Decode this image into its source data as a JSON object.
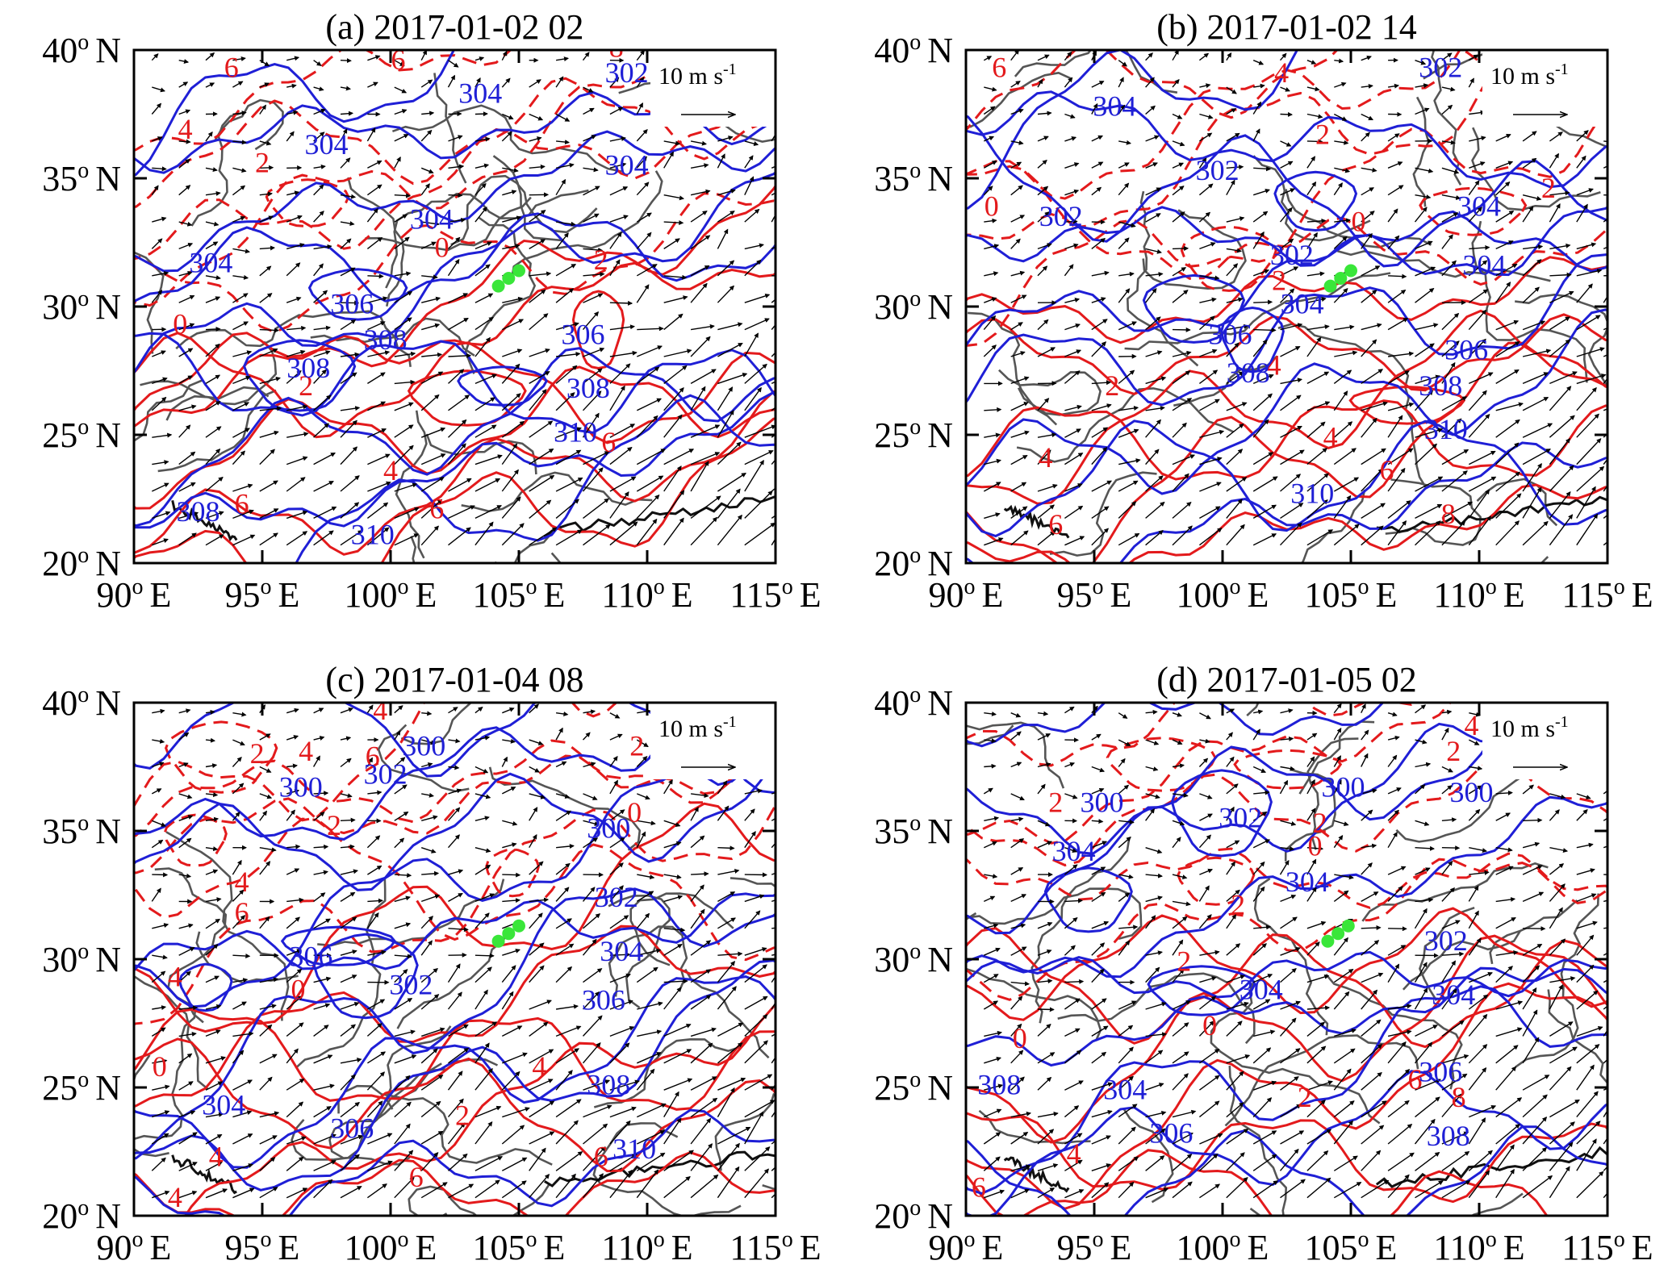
{
  "figure": {
    "panels": [
      {
        "id": "a",
        "title": "(a) 2017-01-02 02",
        "legend": {
          "speed_value": "10",
          "unit": "m s",
          "exponent": "-1"
        },
        "contours_blue": [
          {
            "label": "304",
            "lon": 97.5,
            "lat": 36.2
          },
          {
            "label": "304",
            "lon": 93.0,
            "lat": 31.6
          },
          {
            "label": "304",
            "lon": 103.5,
            "lat": 38.2
          },
          {
            "label": "304",
            "lon": 101.6,
            "lat": 33.3
          },
          {
            "label": "304",
            "lon": 109.2,
            "lat": 35.4
          },
          {
            "label": "302",
            "lon": 109.2,
            "lat": 39.0
          },
          {
            "label": "306",
            "lon": 98.5,
            "lat": 30.0
          },
          {
            "label": "306",
            "lon": 107.5,
            "lat": 28.8
          },
          {
            "label": "308",
            "lon": 96.8,
            "lat": 27.5
          },
          {
            "label": "308",
            "lon": 99.8,
            "lat": 28.6
          },
          {
            "label": "308",
            "lon": 107.7,
            "lat": 26.7
          },
          {
            "label": "308",
            "lon": 92.5,
            "lat": 21.9
          },
          {
            "label": "310",
            "lon": 107.2,
            "lat": 25.0
          },
          {
            "label": "310",
            "lon": 99.3,
            "lat": 21.0
          }
        ],
        "contours_red": [
          {
            "label": "6",
            "lon": 93.8,
            "lat": 39.2
          },
          {
            "label": "6",
            "lon": 100.3,
            "lat": 39.5
          },
          {
            "label": "4",
            "lon": 92.0,
            "lat": 36.8
          },
          {
            "label": "2",
            "lon": 95.0,
            "lat": 35.5
          },
          {
            "label": "6",
            "lon": 94.2,
            "lat": 22.2
          },
          {
            "label": "4",
            "lon": 100.0,
            "lat": 23.5
          },
          {
            "label": "2",
            "lon": 96.7,
            "lat": 26.8
          },
          {
            "label": "0",
            "lon": 91.8,
            "lat": 29.2
          },
          {
            "label": "0",
            "lon": 102.0,
            "lat": 32.2
          },
          {
            "label": "2",
            "lon": 108.2,
            "lat": 31.7
          },
          {
            "label": "6",
            "lon": 108.5,
            "lat": 24.6
          },
          {
            "label": "6",
            "lon": 101.8,
            "lat": 22.0
          },
          {
            "label": "8",
            "lon": 108.8,
            "lat": 40.0
          }
        ],
        "stations": [
          {
            "lon": 104.2,
            "lat": 30.8
          },
          {
            "lon": 104.6,
            "lat": 31.1
          },
          {
            "lon": 105.0,
            "lat": 31.4
          }
        ]
      },
      {
        "id": "b",
        "title": "(b) 2017-01-02 14",
        "legend": {
          "speed_value": "10",
          "unit": "m s",
          "exponent": "-1"
        },
        "contours_blue": [
          {
            "label": "304",
            "lon": 95.8,
            "lat": 37.7
          },
          {
            "label": "302",
            "lon": 99.8,
            "lat": 35.2
          },
          {
            "label": "302",
            "lon": 93.7,
            "lat": 33.4
          },
          {
            "label": "302",
            "lon": 108.5,
            "lat": 39.2
          },
          {
            "label": "304",
            "lon": 110.0,
            "lat": 33.8
          },
          {
            "label": "302",
            "lon": 102.7,
            "lat": 31.9
          },
          {
            "label": "304",
            "lon": 103.1,
            "lat": 30.0
          },
          {
            "label": "304",
            "lon": 110.2,
            "lat": 31.5
          },
          {
            "label": "306",
            "lon": 100.3,
            "lat": 28.8
          },
          {
            "label": "306",
            "lon": 109.5,
            "lat": 28.2
          },
          {
            "label": "308",
            "lon": 101.0,
            "lat": 27.3
          },
          {
            "label": "308",
            "lon": 108.5,
            "lat": 26.8
          },
          {
            "label": "310",
            "lon": 108.7,
            "lat": 25.1
          },
          {
            "label": "310",
            "lon": 103.5,
            "lat": 22.6
          }
        ],
        "contours_red": [
          {
            "label": "6",
            "lon": 91.3,
            "lat": 39.2
          },
          {
            "label": "4",
            "lon": 102.3,
            "lat": 39.0
          },
          {
            "label": "2",
            "lon": 103.9,
            "lat": 36.6
          },
          {
            "label": "2",
            "lon": 112.7,
            "lat": 34.5
          },
          {
            "label": "6",
            "lon": 110.4,
            "lat": 38.0
          },
          {
            "label": "0",
            "lon": 91.0,
            "lat": 33.8
          },
          {
            "label": "0",
            "lon": 105.3,
            "lat": 33.2
          },
          {
            "label": "2",
            "lon": 102.2,
            "lat": 30.9
          },
          {
            "label": "4",
            "lon": 102.0,
            "lat": 27.6
          },
          {
            "label": "4",
            "lon": 104.2,
            "lat": 24.8
          },
          {
            "label": "2",
            "lon": 95.7,
            "lat": 26.8
          },
          {
            "label": "4",
            "lon": 93.1,
            "lat": 24.0
          },
          {
            "label": "6",
            "lon": 93.5,
            "lat": 21.4
          },
          {
            "label": "6",
            "lon": 106.4,
            "lat": 23.5
          },
          {
            "label": "8",
            "lon": 108.8,
            "lat": 21.8
          }
        ],
        "stations": [
          {
            "lon": 104.2,
            "lat": 30.8
          },
          {
            "lon": 104.6,
            "lat": 31.1
          },
          {
            "lon": 105.0,
            "lat": 31.4
          }
        ]
      },
      {
        "id": "c",
        "title": "(c) 2017-01-04 08",
        "legend": {
          "speed_value": "10",
          "unit": "m s",
          "exponent": "-1"
        },
        "contours_blue": [
          {
            "label": "300",
            "lon": 96.5,
            "lat": 36.6
          },
          {
            "label": "302",
            "lon": 99.8,
            "lat": 37.1
          },
          {
            "label": "300",
            "lon": 101.3,
            "lat": 38.2
          },
          {
            "label": "300",
            "lon": 108.5,
            "lat": 35.0
          },
          {
            "label": "302",
            "lon": 108.8,
            "lat": 32.3
          },
          {
            "label": "306",
            "lon": 96.9,
            "lat": 30.0
          },
          {
            "label": "302",
            "lon": 100.8,
            "lat": 28.9
          },
          {
            "label": "304",
            "lon": 93.5,
            "lat": 24.2
          },
          {
            "label": "304",
            "lon": 109.0,
            "lat": 30.2
          },
          {
            "label": "306",
            "lon": 98.5,
            "lat": 23.3
          },
          {
            "label": "306",
            "lon": 108.3,
            "lat": 28.3
          },
          {
            "label": "308",
            "lon": 108.5,
            "lat": 25.0
          },
          {
            "label": "310",
            "lon": 109.5,
            "lat": 22.5
          }
        ],
        "contours_red": [
          {
            "label": "4",
            "lon": 99.6,
            "lat": 39.6
          },
          {
            "label": "2",
            "lon": 109.6,
            "lat": 38.2
          },
          {
            "label": "0",
            "lon": 109.5,
            "lat": 35.6
          },
          {
            "label": "4",
            "lon": 96.7,
            "lat": 38.0
          },
          {
            "label": "6",
            "lon": 99.3,
            "lat": 37.8
          },
          {
            "label": "2",
            "lon": 94.8,
            "lat": 37.9
          },
          {
            "label": "2",
            "lon": 97.8,
            "lat": 35.1
          },
          {
            "label": "4",
            "lon": 94.2,
            "lat": 32.9
          },
          {
            "label": "6",
            "lon": 94.2,
            "lat": 31.7
          },
          {
            "label": "4",
            "lon": 91.6,
            "lat": 29.2
          },
          {
            "label": "0",
            "lon": 96.4,
            "lat": 28.7
          },
          {
            "label": "0",
            "lon": 91.0,
            "lat": 25.7
          },
          {
            "label": "4",
            "lon": 93.2,
            "lat": 22.2
          },
          {
            "label": "4",
            "lon": 91.6,
            "lat": 20.6
          },
          {
            "label": "2",
            "lon": 102.8,
            "lat": 23.8
          },
          {
            "label": "4",
            "lon": 105.8,
            "lat": 25.7
          },
          {
            "label": "6",
            "lon": 101.0,
            "lat": 21.4
          },
          {
            "label": "6",
            "lon": 108.2,
            "lat": 22.2
          }
        ],
        "stations": [
          {
            "lon": 104.2,
            "lat": 30.7
          },
          {
            "lon": 104.6,
            "lat": 31.0
          },
          {
            "lon": 105.0,
            "lat": 31.3
          }
        ]
      },
      {
        "id": "d",
        "title": "(d) 2017-01-05 02",
        "legend": {
          "speed_value": "10",
          "unit": "m s",
          "exponent": "-1"
        },
        "contours_blue": [
          {
            "label": "300",
            "lon": 95.3,
            "lat": 36.0
          },
          {
            "label": "302",
            "lon": 100.7,
            "lat": 35.4
          },
          {
            "label": "300",
            "lon": 104.7,
            "lat": 36.6
          },
          {
            "label": "300",
            "lon": 109.7,
            "lat": 36.4
          },
          {
            "label": "304",
            "lon": 94.2,
            "lat": 34.1
          },
          {
            "label": "304",
            "lon": 103.3,
            "lat": 32.9
          },
          {
            "label": "304",
            "lon": 101.5,
            "lat": 28.7
          },
          {
            "label": "302",
            "lon": 108.7,
            "lat": 30.6
          },
          {
            "label": "304",
            "lon": 109.0,
            "lat": 28.5
          },
          {
            "label": "304",
            "lon": 96.2,
            "lat": 24.8
          },
          {
            "label": "306",
            "lon": 98.0,
            "lat": 23.1
          },
          {
            "label": "306",
            "lon": 108.5,
            "lat": 25.5
          },
          {
            "label": "308",
            "lon": 91.3,
            "lat": 25.0
          },
          {
            "label": "308",
            "lon": 108.8,
            "lat": 23.0
          }
        ],
        "contours_red": [
          {
            "label": "4",
            "lon": 109.7,
            "lat": 39.0
          },
          {
            "label": "2",
            "lon": 109.0,
            "lat": 38.0
          },
          {
            "label": "2",
            "lon": 103.8,
            "lat": 35.2
          },
          {
            "label": "0",
            "lon": 103.6,
            "lat": 34.3
          },
          {
            "label": "2",
            "lon": 100.6,
            "lat": 32.0
          },
          {
            "label": "2",
            "lon": 93.5,
            "lat": 36.0
          },
          {
            "label": "2",
            "lon": 98.5,
            "lat": 29.8
          },
          {
            "label": "0",
            "lon": 92.1,
            "lat": 26.8
          },
          {
            "label": "0",
            "lon": 99.5,
            "lat": 27.3
          },
          {
            "label": "4",
            "lon": 94.2,
            "lat": 22.3
          },
          {
            "label": "2",
            "lon": 103.2,
            "lat": 24.5
          },
          {
            "label": "6",
            "lon": 90.5,
            "lat": 21.0
          },
          {
            "label": "6",
            "lon": 107.5,
            "lat": 25.2
          },
          {
            "label": "8",
            "lon": 109.2,
            "lat": 24.5
          }
        ],
        "stations": [
          {
            "lon": 104.1,
            "lat": 30.7
          },
          {
            "lon": 104.5,
            "lat": 31.0
          },
          {
            "lon": 104.9,
            "lat": 31.3
          }
        ]
      }
    ],
    "lat_ticks": [
      {
        "value": 40,
        "label": "40",
        "hem": "N"
      },
      {
        "value": 35,
        "label": "35",
        "hem": "N"
      },
      {
        "value": 30,
        "label": "30",
        "hem": "N"
      },
      {
        "value": 25,
        "label": "25",
        "hem": "N"
      },
      {
        "value": 20,
        "label": "20",
        "hem": "N"
      }
    ],
    "lon_ticks": [
      {
        "value": 90,
        "label": "90",
        "hem": "E"
      },
      {
        "value": 95,
        "label": "95",
        "hem": "E"
      },
      {
        "value": 100,
        "label": "100",
        "hem": "E"
      },
      {
        "value": 105,
        "label": "105",
        "hem": "E"
      },
      {
        "value": 110,
        "label": "110",
        "hem": "E"
      },
      {
        "value": 115,
        "label": "115",
        "hem": "E"
      }
    ],
    "degree_symbol": "o",
    "lon_range": [
      90,
      115
    ],
    "lat_range": [
      20,
      40
    ],
    "colors": {
      "geopotential_contour": "#1f1fd6",
      "temperature_contour": "#e31a1c",
      "station_marker": "#39e639",
      "boundary": "#555555",
      "wind_vector": "#000000"
    }
  }
}
